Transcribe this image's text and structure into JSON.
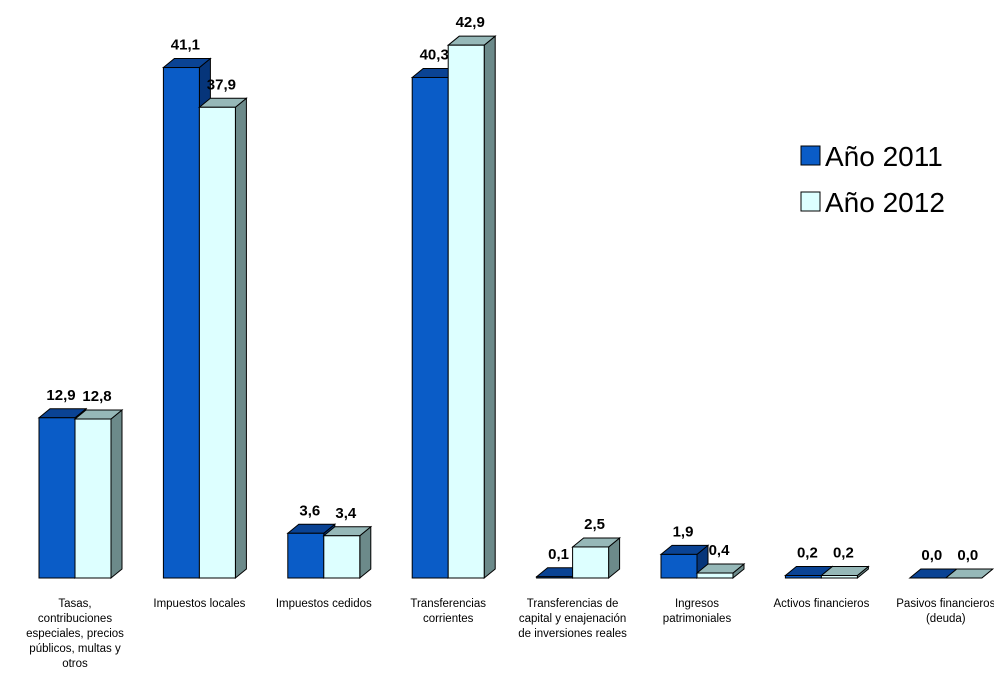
{
  "chart_data": {
    "type": "bar",
    "categories": [
      [
        "Tasas,",
        "contribuciones",
        "especiales, precios",
        "públicos, multas y",
        "otros"
      ],
      [
        "Impuestos locales"
      ],
      [
        "Impuestos cedidos"
      ],
      [
        "Transferencias",
        "corrientes"
      ],
      [
        "Transferencias de",
        "capital y enajenación",
        "de inversiones reales"
      ],
      [
        "Ingresos",
        "patrimoniales"
      ],
      [
        "Activos financieros"
      ],
      [
        "Pasivos financieros",
        "(deuda)"
      ]
    ],
    "series": [
      {
        "name": "Año 2011",
        "values": [
          12.9,
          41.1,
          3.6,
          40.3,
          0.1,
          1.9,
          0.2,
          0.0
        ],
        "labels": [
          "12,9",
          "41,1",
          "3,6",
          "40,3",
          "0,1",
          "1,9",
          "0,2",
          "0,0"
        ],
        "color": "#0a5cc7",
        "top_color": "#0a4394",
        "side_color": "#06357a"
      },
      {
        "name": "Año 2012",
        "values": [
          12.8,
          37.9,
          3.4,
          42.9,
          2.5,
          0.4,
          0.2,
          0.0
        ],
        "labels": [
          "12,8",
          "37,9",
          "3,4",
          "42,9",
          "2,5",
          "0,4",
          "0,2",
          "0,0"
        ],
        "color": "#ddffff",
        "top_color": "#96b8b8",
        "side_color": "#6c8a8a"
      }
    ],
    "ylim": [
      0,
      45
    ],
    "grid": false,
    "legend_position": "top-right",
    "stroke_color": "#000000"
  }
}
